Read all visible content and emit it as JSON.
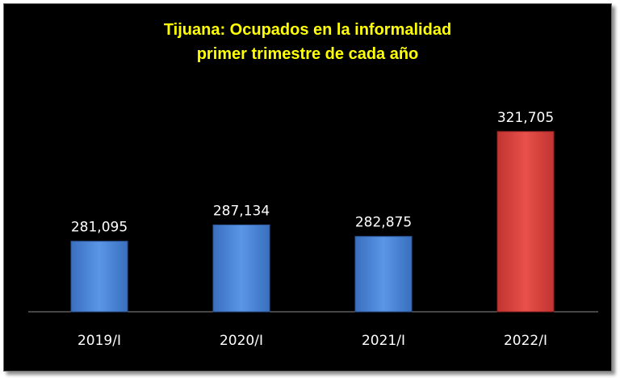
{
  "colors": {
    "background": "#000000",
    "title": "#ffff00",
    "text": "#ffffff",
    "bar_default": "#4a86d8",
    "bar_highlight": "#e0403c"
  },
  "chart_data": {
    "type": "bar",
    "title": "Tijuana: Ocupados en la informalidad",
    "subtitle": "primer trimestre de cada año",
    "categories": [
      "2019/I",
      "2020/I",
      "2021/I",
      "2022/I"
    ],
    "values": [
      281095,
      287134,
      282875,
      321705
    ],
    "value_labels": [
      "281,095",
      "287,134",
      "282,875",
      "321,705"
    ],
    "highlight_index": 3,
    "ylim": [
      255000,
      330000
    ],
    "grid": false,
    "legend": "none"
  }
}
